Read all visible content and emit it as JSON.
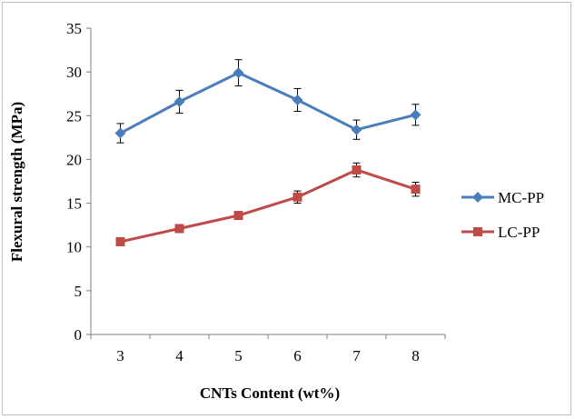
{
  "chart_data": {
    "type": "line",
    "title": "",
    "xlabel": "CNTs Content (wt%)",
    "ylabel": "Flexural strength (MPa)",
    "categories": [
      "3",
      "4",
      "5",
      "6",
      "7",
      "8"
    ],
    "ylim": [
      0,
      35
    ],
    "yticks": [
      "0",
      "5",
      "10",
      "15",
      "20",
      "25",
      "30",
      "35"
    ],
    "grid": false,
    "legend_position": "right",
    "series": [
      {
        "name": "MC-PP",
        "color": "#4a7ebb",
        "marker": "diamond",
        "values": [
          23.0,
          26.6,
          29.9,
          26.8,
          23.4,
          25.1
        ],
        "errors": [
          1.1,
          1.3,
          1.5,
          1.3,
          1.1,
          1.2
        ]
      },
      {
        "name": "LC-PP",
        "color": "#be4b48",
        "marker": "square",
        "values": [
          10.6,
          12.1,
          13.6,
          15.7,
          18.8,
          16.6
        ],
        "errors": [
          0.3,
          0.3,
          0.3,
          0.7,
          0.8,
          0.8
        ]
      }
    ]
  }
}
